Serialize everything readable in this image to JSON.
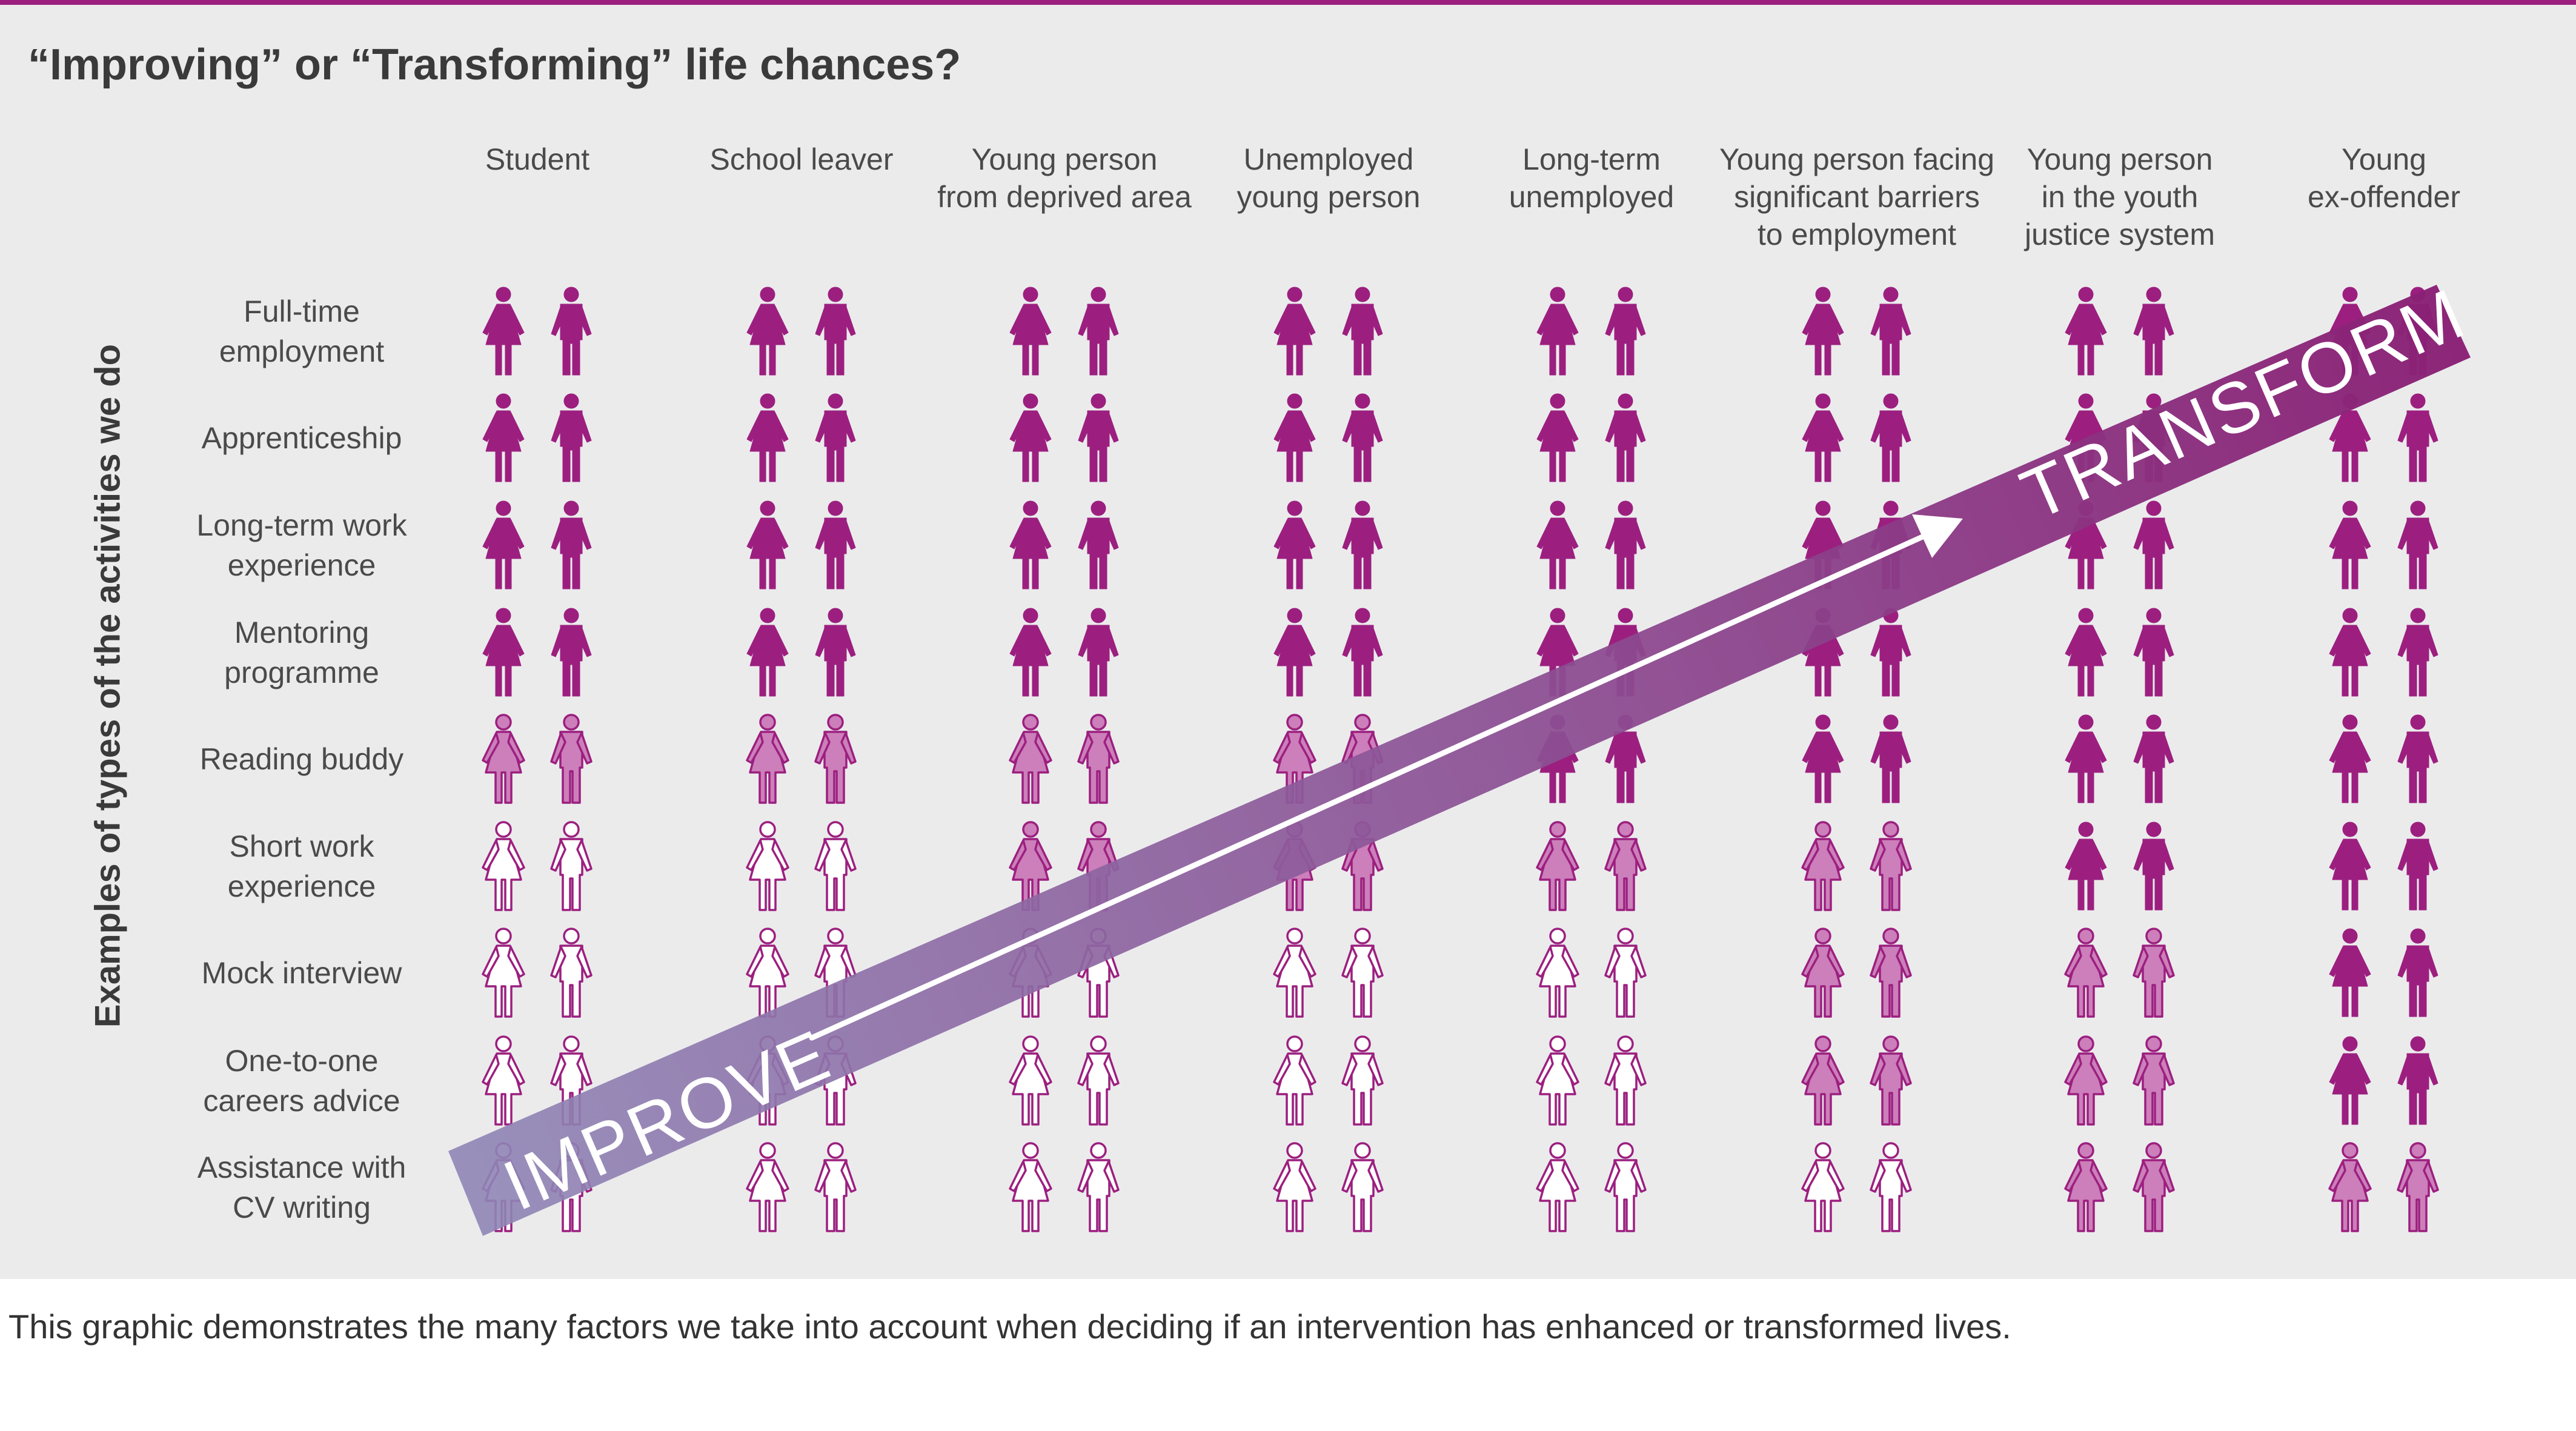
{
  "title": "“Improving” or “Transforming” life chances?",
  "y_axis_label": "Examples of types of the activities we do",
  "columns": [
    {
      "lines": [
        "Student"
      ]
    },
    {
      "lines": [
        "School leaver"
      ]
    },
    {
      "lines": [
        "Young person",
        "from deprived area"
      ]
    },
    {
      "lines": [
        "Unemployed",
        "young person"
      ]
    },
    {
      "lines": [
        "Long-term",
        "unemployed"
      ]
    },
    {
      "lines": [
        "Young person facing",
        "significant barriers",
        "to employment"
      ]
    },
    {
      "lines": [
        "Young person",
        "in the youth",
        "justice system"
      ]
    },
    {
      "lines": [
        "Young",
        "ex-offender"
      ]
    }
  ],
  "rows": [
    {
      "lines": [
        "Full-time",
        "employment"
      ],
      "levels": [
        "dark",
        "dark",
        "dark",
        "dark",
        "dark",
        "dark",
        "dark",
        "dark"
      ]
    },
    {
      "lines": [
        "Apprenticeship"
      ],
      "levels": [
        "dark",
        "dark",
        "dark",
        "dark",
        "dark",
        "dark",
        "dark",
        "dark"
      ]
    },
    {
      "lines": [
        "Long-term work",
        "experience"
      ],
      "levels": [
        "dark",
        "dark",
        "dark",
        "dark",
        "dark",
        "dark",
        "dark",
        "dark"
      ]
    },
    {
      "lines": [
        "Mentoring",
        "programme"
      ],
      "levels": [
        "dark",
        "dark",
        "dark",
        "dark",
        "dark",
        "dark",
        "dark",
        "dark"
      ]
    },
    {
      "lines": [
        "Reading buddy"
      ],
      "levels": [
        "light",
        "light",
        "light",
        "light",
        "dark",
        "dark",
        "dark",
        "dark"
      ]
    },
    {
      "lines": [
        "Short work",
        "experience"
      ],
      "levels": [
        "outline",
        "outline",
        "light",
        "light",
        "light",
        "light",
        "dark",
        "dark"
      ]
    },
    {
      "lines": [
        "Mock interview"
      ],
      "levels": [
        "outline",
        "outline",
        "outline",
        "outline",
        "outline",
        "light",
        "light",
        "dark"
      ]
    },
    {
      "lines": [
        "One-to-one",
        "careers advice"
      ],
      "levels": [
        "outline",
        "outline",
        "outline",
        "outline",
        "outline",
        "light",
        "light",
        "dark"
      ]
    },
    {
      "lines": [
        "Assistance with",
        "CV writing"
      ],
      "levels": [
        "outline",
        "outline",
        "outline",
        "outline",
        "outline",
        "outline",
        "light",
        "light"
      ]
    }
  ],
  "arrow": {
    "start_label": "IMPROVE",
    "end_label": "TRANSFORM"
  },
  "colors": {
    "dark": "#9c1f7f",
    "light": "#cc7fba",
    "outline": "#9c1f7f",
    "arrow_start": "#8f86b6",
    "arrow_end": "#8a1f74"
  },
  "caption": "This graphic demonstrates the many factors we take into account when deciding if an intervention has enhanced or transformed lives."
}
